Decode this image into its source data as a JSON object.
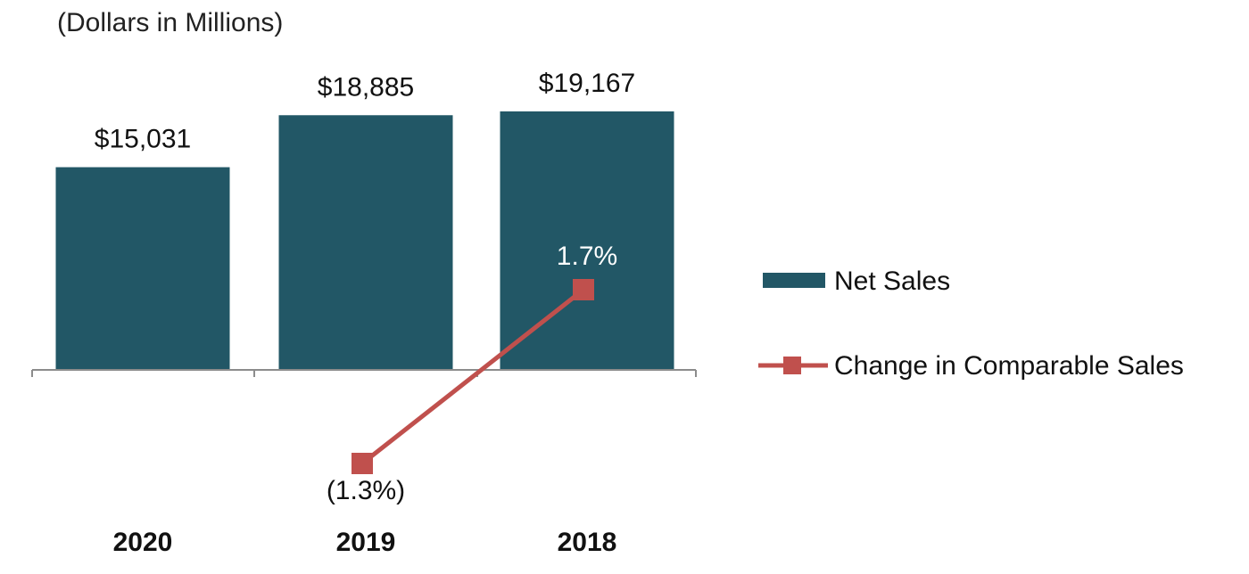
{
  "chart_data": {
    "type": "bar",
    "subtitle": "(Dollars in Millions)",
    "categories": [
      "2020",
      "2019",
      "2018"
    ],
    "series": [
      {
        "name": "Net Sales",
        "type": "bar",
        "values": [
          15031,
          18885,
          19167
        ],
        "labels": [
          "$15,031",
          "$18,885",
          "$19,167"
        ],
        "color": "#225766"
      },
      {
        "name": "Change in Comparable Sales",
        "type": "line",
        "marker": "square",
        "values": [
          null,
          -1.3,
          1.7
        ],
        "labels": [
          "",
          "(1.3%)",
          "1.7%"
        ],
        "color": "#c0504d"
      }
    ],
    "ylim_bar": [
      0,
      19167
    ],
    "ylim_line": [
      -1.3,
      1.7
    ],
    "legend": "right",
    "grid": false
  }
}
